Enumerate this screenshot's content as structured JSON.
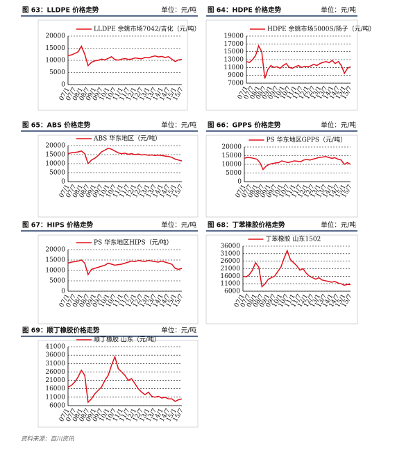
{
  "chart_data": [
    {
      "type": "line",
      "title": "图 63：LLDPE 价格走势",
      "unit": "单位：元/吨",
      "categories": [
        "07/1",
        null,
        "07/7",
        null,
        "08/1",
        null,
        "08/7",
        null,
        "09/1",
        null,
        "09/7",
        null,
        "10/1",
        null,
        "10/7",
        null,
        "11/1",
        null,
        "11/7",
        null,
        "12/1",
        null,
        "12/7",
        null,
        "13/1",
        null,
        "13/7",
        null,
        "14/1",
        null,
        "14/7",
        null,
        "15/1",
        null,
        "15/7"
      ],
      "series": [
        {
          "name": "LLDPE 余姚市场7042/吉化（元/吨）",
          "color": "#e0101a",
          "values": [
            12000,
            12200,
            12800,
            13500,
            15800,
            12500,
            7800,
            9200,
            9800,
            10000,
            10500,
            10200,
            10800,
            11500,
            10300,
            10100,
            10500,
            10700,
            10400,
            10500,
            11000,
            10800,
            10600,
            11200,
            11000,
            11500,
            11800,
            11400,
            11600,
            11200,
            11500,
            10500,
            9500,
            10200,
            10400
          ]
        }
      ],
      "ylim": [
        0,
        20000
      ],
      "yticks": [
        0,
        5000,
        10000,
        15000,
        20000
      ],
      "grid": true
    },
    {
      "type": "line",
      "title": "图 64：HDPE 价格走势",
      "unit": "单位：元/吨",
      "categories": [
        "07/1",
        null,
        "07/7",
        null,
        "08/1",
        null,
        "08/7",
        null,
        "09/1",
        null,
        "09/7",
        null,
        "10/1",
        null,
        "10/7",
        null,
        "11/1",
        null,
        "11/7",
        null,
        "12/1",
        null,
        "12/7",
        null,
        "13/1",
        null,
        "13/7",
        null,
        "14/1",
        null,
        "14/7",
        null,
        "15/1",
        null,
        "15/7"
      ],
      "series": [
        {
          "name": "HDPE 余姚市场5000S/扬子（元/吨）",
          "color": "#e0101a",
          "values": [
            12500,
            12300,
            13000,
            14000,
            16500,
            15000,
            8200,
            10500,
            11500,
            11000,
            11200,
            10800,
            11500,
            12000,
            11000,
            10800,
            11200,
            11500,
            11000,
            11300,
            11200,
            11400,
            11800,
            11500,
            12000,
            12300,
            12500,
            12200,
            12800,
            12000,
            12500,
            11500,
            9500,
            10800,
            11200
          ]
        }
      ],
      "ylim": [
        7000,
        19000
      ],
      "yticks": [
        7000,
        9000,
        11000,
        13000,
        15000,
        17000,
        19000
      ],
      "grid": true
    },
    {
      "type": "line",
      "title": "图 65：ABS 价格走势",
      "unit": "单位：元/吨",
      "categories": [
        "07/1",
        null,
        "07/7",
        null,
        "08/1",
        null,
        "08/7",
        null,
        "09/1",
        null,
        "09/7",
        null,
        "10/1",
        null,
        "10/7",
        null,
        "11/1",
        null,
        "11/7",
        null,
        "12/1",
        null,
        "12/7",
        null,
        "13/1",
        null,
        "13/7",
        null,
        "14/1",
        null,
        "14/7",
        null,
        "15/1",
        null,
        "15/7"
      ],
      "series": [
        {
          "name": "ABS 华东地区（元/吨）",
          "color": "#e0101a",
          "values": [
            15500,
            16000,
            16200,
            16500,
            17000,
            15500,
            10000,
            12000,
            13000,
            14500,
            16500,
            17500,
            18500,
            18000,
            17000,
            16000,
            15500,
            15800,
            15200,
            15500,
            15000,
            15300,
            14800,
            15000,
            14600,
            14800,
            14500,
            14700,
            14500,
            14200,
            14000,
            13500,
            12500,
            12000,
            11500
          ]
        }
      ],
      "ylim": [
        0,
        20000
      ],
      "yticks": [
        0,
        5000,
        10000,
        15000,
        20000
      ],
      "grid": true
    },
    {
      "type": "line",
      "title": "图 66：GPPS 价格走势",
      "unit": "单位：元/吨",
      "categories": [
        "07/1",
        null,
        "07/7",
        null,
        "08/1",
        null,
        "08/7",
        null,
        "09/1",
        null,
        "09/7",
        null,
        "10/1",
        null,
        "10/7",
        null,
        "11/1",
        null,
        "11/7",
        null,
        "12/1",
        null,
        "12/7",
        null,
        "13/1",
        null,
        "13/7",
        null,
        "14/1",
        null,
        "14/7",
        null,
        "15/1",
        null,
        "15/7"
      ],
      "series": [
        {
          "name": "PS 华东地区GPPS（元/吨）",
          "color": "#e0101a",
          "values": [
            13500,
            14000,
            13800,
            13500,
            13000,
            11000,
            7000,
            9000,
            10000,
            10500,
            10800,
            11000,
            12000,
            11500,
            11000,
            11500,
            12000,
            11800,
            11500,
            12500,
            12800,
            12500,
            13000,
            13500,
            14000,
            14200,
            14500,
            14000,
            13500,
            13800,
            13000,
            12500,
            10000,
            11000,
            10000
          ]
        }
      ],
      "ylim": [
        0,
        20000
      ],
      "yticks": [
        0,
        5000,
        10000,
        15000,
        20000
      ],
      "grid": true
    },
    {
      "type": "line",
      "title": "图 67：HIPS 价格走势",
      "unit": "单位：元/吨",
      "categories": [
        "07/1",
        null,
        "07/7",
        null,
        "08/1",
        null,
        "08/7",
        null,
        "09/1",
        null,
        "09/7",
        null,
        "10/1",
        null,
        "10/7",
        null,
        "11/1",
        null,
        "11/7",
        null,
        "12/1",
        null,
        "12/7",
        null,
        "13/1",
        null,
        "13/7",
        null,
        "14/1",
        null,
        "14/7",
        null,
        "15/1",
        null,
        "15/7"
      ],
      "series": [
        {
          "name": "PS 华东地区HIPS（元/吨）",
          "color": "#e0101a",
          "values": [
            13500,
            14000,
            14200,
            14500,
            15000,
            13500,
            8000,
            10500,
            11000,
            11500,
            12000,
            12500,
            13500,
            13000,
            12500,
            12800,
            13000,
            13500,
            14000,
            14500,
            14200,
            14800,
            14500,
            14300,
            14800,
            14500,
            14200,
            14000,
            14500,
            14000,
            13500,
            13000,
            11000,
            10500,
            11000
          ]
        }
      ],
      "ylim": [
        0,
        20000
      ],
      "yticks": [
        0,
        5000,
        10000,
        15000,
        20000
      ],
      "grid": true
    },
    {
      "type": "line",
      "title": "图 68：丁苯橡胶价格走势",
      "unit": "单位：元/吨",
      "categories": [
        "07/1",
        null,
        "07/7",
        null,
        "08/1",
        null,
        "08/7",
        null,
        "09/1",
        null,
        "09/7",
        null,
        "10/1",
        null,
        "10/7",
        null,
        "11/1",
        null,
        "11/7",
        null,
        "12/1",
        null,
        "12/7",
        null,
        "13/1",
        null,
        "13/7",
        null,
        "14/1",
        null,
        "14/7",
        null,
        "15/1",
        null,
        "15/7"
      ],
      "series": [
        {
          "name": "丁苯橡胶 山东1502",
          "color": "#e0101a",
          "values": [
            16000,
            15500,
            17000,
            20000,
            25000,
            22000,
            9000,
            11000,
            14000,
            15000,
            16000,
            19000,
            22000,
            28000,
            33000,
            27000,
            25000,
            23000,
            20000,
            21000,
            18000,
            16000,
            15000,
            14000,
            15000,
            13500,
            13000,
            12500,
            12000,
            12500,
            11500,
            11000,
            10000,
            10500,
            10500
          ]
        }
      ],
      "ylim": [
        6000,
        36000
      ],
      "yticks": [
        6000,
        11000,
        16000,
        21000,
        26000,
        31000,
        36000
      ],
      "grid": true
    },
    {
      "type": "line",
      "title": "图 69：顺丁橡胶价格走势",
      "unit": "单位：元/吨",
      "categories": [
        "07/1",
        null,
        "07/7",
        null,
        "08/1",
        null,
        "08/7",
        null,
        "09/1",
        null,
        "09/7",
        null,
        "10/1",
        null,
        "10/7",
        null,
        "11/1",
        null,
        "11/7",
        null,
        "12/1",
        null,
        "12/7",
        null,
        "13/1",
        null,
        "13/7",
        null,
        "14/1",
        null,
        "14/7",
        null,
        "15/1",
        null,
        "15/7"
      ],
      "series": [
        {
          "name": "顺丁橡胶 山东（元/吨）",
          "color": "#e0101a",
          "values": [
            17000,
            18000,
            20000,
            23000,
            27000,
            24000,
            8000,
            10000,
            13000,
            15000,
            17000,
            21000,
            24000,
            30000,
            35000,
            28000,
            26000,
            24000,
            21000,
            22000,
            19000,
            16000,
            14000,
            12500,
            14000,
            11500,
            11000,
            11500,
            10500,
            11000,
            10000,
            10000,
            8500,
            9500,
            10000
          ]
        }
      ],
      "ylim": [
        6000,
        41000
      ],
      "yticks": [
        6000,
        11000,
        16000,
        21000,
        26000,
        31000,
        36000,
        41000
      ],
      "grid": true
    }
  ],
  "source": "资料来源：百川资讯"
}
